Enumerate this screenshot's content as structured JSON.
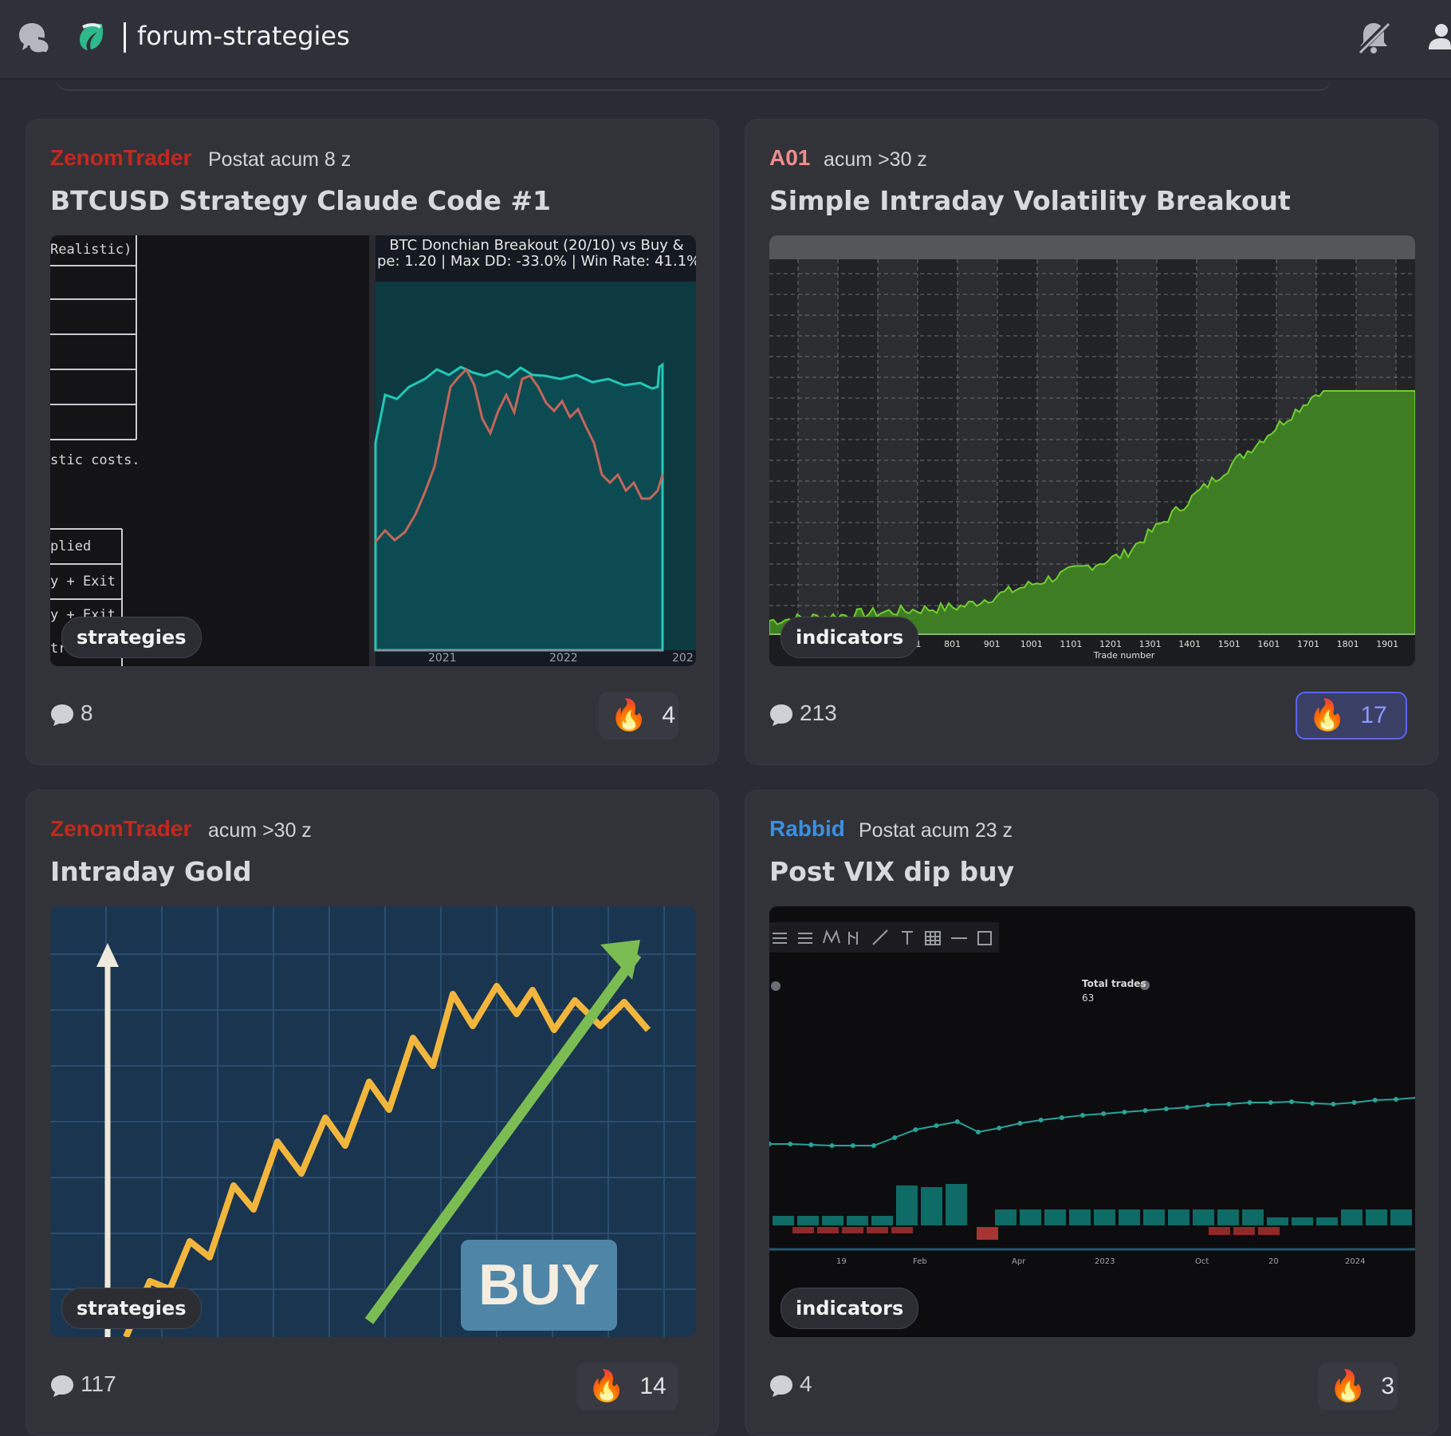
{
  "header": {
    "channel_name": "forum-strategies",
    "icons": [
      "forum-icon",
      "server-leaf-icon",
      "mute-bell-icon",
      "members-icon"
    ]
  },
  "posts": [
    {
      "author": "ZenomTrader",
      "author_color": "#c3281e",
      "time": "Postat acum 8 z",
      "title": "BTCUSD Strategy Claude Code #1",
      "tag": "strategies",
      "comments": "8",
      "reactions": "4",
      "reaction_active": false,
      "media": {
        "code_lines": [
          "Realistic)",
          "stic costs.",
          "plied",
          "y + Exit",
          "y + Exit",
          "tr"
        ],
        "chart_title_1": "BTC Donchian Breakout (20/10) vs Buy &",
        "chart_title_2": "pe: 1.20 | Max DD: -33.0% | Win Rate: 41.1%",
        "x_ticks": [
          "2021",
          "2022",
          "202"
        ]
      }
    },
    {
      "author": "A01",
      "author_color": "#f08c8c",
      "time": "acum >30 z",
      "title": "Simple Intraday Volatility Breakout",
      "tag": "indicators",
      "comments": "213",
      "reactions": "17",
      "reaction_active": true,
      "media": {
        "x_ticks": [
          "701",
          "801",
          "901",
          "1001",
          "1101",
          "1201",
          "1301",
          "1401",
          "1501",
          "1601",
          "1701",
          "1801",
          "1901"
        ],
        "x_label": "Trade number"
      }
    },
    {
      "author": "ZenomTrader",
      "author_color": "#c3281e",
      "time": "acum >30 z",
      "title": "Intraday Gold",
      "tag": "strategies",
      "comments": "117",
      "reactions": "14",
      "reaction_active": false,
      "media": {
        "buy_label": "BUY"
      }
    },
    {
      "author": "Rabbid",
      "author_color": "#3b8fe0",
      "time": "Postat acum 23 z",
      "title": "Post VIX dip buy",
      "tag": "indicators",
      "comments": "4",
      "reactions": "3",
      "reaction_active": false,
      "media": {
        "total_trades_label": "Total trades",
        "total_trades_value": "63",
        "x_ticks": [
          "19",
          "Feb",
          "Apr",
          "2023",
          "Oct",
          "20",
          "2024"
        ]
      }
    }
  ]
}
